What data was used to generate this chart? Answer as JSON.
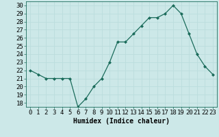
{
  "x": [
    0,
    1,
    2,
    3,
    4,
    5,
    6,
    7,
    8,
    9,
    10,
    11,
    12,
    13,
    14,
    15,
    16,
    17,
    18,
    19,
    20,
    21,
    22,
    23
  ],
  "y": [
    22,
    21.5,
    21,
    21,
    21,
    21,
    17.5,
    18.5,
    20,
    21,
    23,
    25.5,
    25.5,
    26.5,
    27.5,
    28.5,
    28.5,
    29,
    30,
    29,
    26.5,
    24,
    22.5,
    21.5
  ],
  "line_color": "#1a6b5a",
  "marker": "D",
  "marker_size": 2,
  "bg_color": "#cce8e8",
  "grid_color": "#bbdddd",
  "xlabel": "Humidex (Indice chaleur)",
  "xlim": [
    -0.5,
    23.5
  ],
  "ylim": [
    17.5,
    30.5
  ],
  "yticks": [
    18,
    19,
    20,
    21,
    22,
    23,
    24,
    25,
    26,
    27,
    28,
    29,
    30
  ],
  "xtick_labels": [
    "0",
    "1",
    "2",
    "3",
    "4",
    "5",
    "6",
    "7",
    "8",
    "9",
    "10",
    "11",
    "12",
    "13",
    "14",
    "15",
    "16",
    "17",
    "18",
    "19",
    "20",
    "21",
    "22",
    "23"
  ],
  "xlabel_fontsize": 7,
  "tick_fontsize": 6.5
}
